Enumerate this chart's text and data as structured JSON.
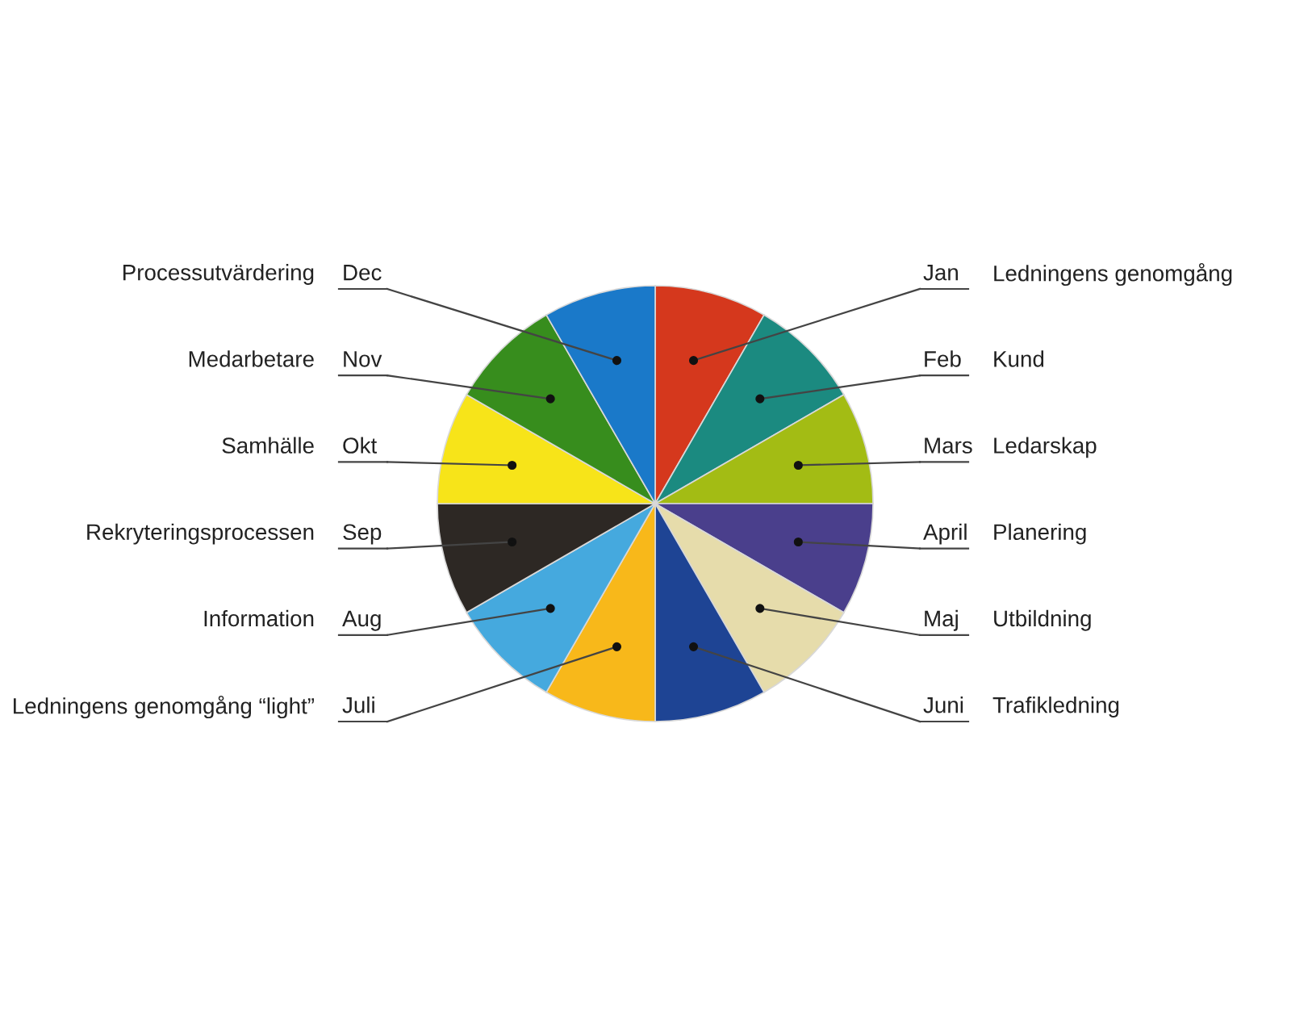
{
  "chart_data": {
    "type": "pie",
    "categories": [
      "Jan",
      "Feb",
      "Mars",
      "April",
      "Maj",
      "Juni",
      "Juli",
      "Aug",
      "Sep",
      "Okt",
      "Nov",
      "Dec"
    ],
    "values": [
      8.33,
      8.33,
      8.33,
      8.33,
      8.33,
      8.33,
      8.33,
      8.33,
      8.33,
      8.33,
      8.33,
      8.33
    ],
    "colors": [
      "#d5381d",
      "#1b8a80",
      "#a3bc14",
      "#4a3f8c",
      "#e6dcab",
      "#1e4494",
      "#f8b81a",
      "#45a9de",
      "#2d2824",
      "#f7e419",
      "#378d1d",
      "#1a79c9"
    ],
    "annotations": [
      "Ledningens genomgång",
      "Kund",
      "Ledarskap",
      "Planering",
      "Utbildning",
      "Trafikledning",
      "Ledningens genomgång “light”",
      "Information",
      "Rekryteringsprocessen",
      "Samhälle",
      "Medarbetare",
      "Processutvärdering"
    ]
  }
}
